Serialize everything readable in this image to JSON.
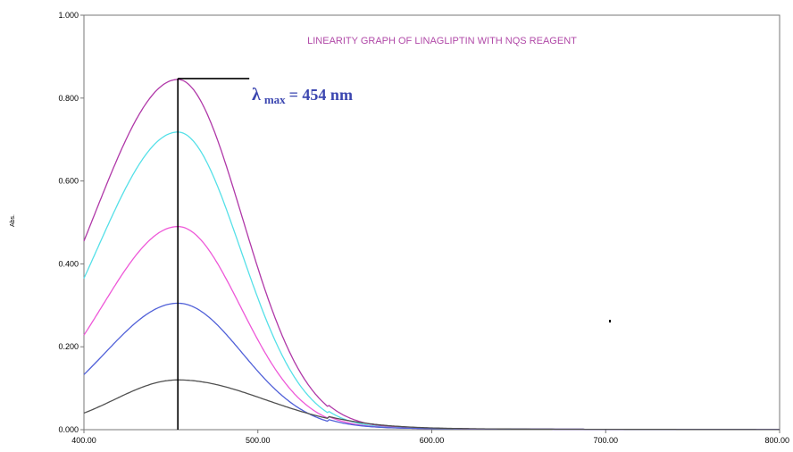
{
  "chart_data": {
    "type": "line",
    "title": "LINEARITY GRAPH OF LINAGLIPTIN WITH NQS REAGENT",
    "xlabel": "",
    "ylabel": "Abs.",
    "xlim": [
      400,
      800
    ],
    "ylim": [
      0,
      1
    ],
    "x_ticks": [
      "400.00",
      "500.00",
      "600.00",
      "700.00",
      "800.00"
    ],
    "y_ticks": [
      "0.000",
      "0.200",
      "0.400",
      "0.600",
      "0.800",
      "1.000"
    ],
    "grid": false,
    "legend": "none",
    "annotation": {
      "lambda": "λ",
      "sub": "max",
      "rest": " = 454 nm",
      "x": 454
    },
    "series": [
      {
        "color": "#b038a8",
        "peak": 0.845,
        "start": 0.455,
        "fall_sd": 37
      },
      {
        "color": "#55e0e8",
        "peak": 0.718,
        "start": 0.365,
        "fall_sd": 36
      },
      {
        "color": "#ee58d8",
        "peak": 0.49,
        "start": 0.228,
        "fall_sd": 36
      },
      {
        "color": "#5060d8",
        "peak": 0.305,
        "start": 0.133,
        "fall_sd": 37
      },
      {
        "color": "#505050",
        "peak": 0.12,
        "start": 0.04,
        "fall_sd": 50
      }
    ]
  }
}
